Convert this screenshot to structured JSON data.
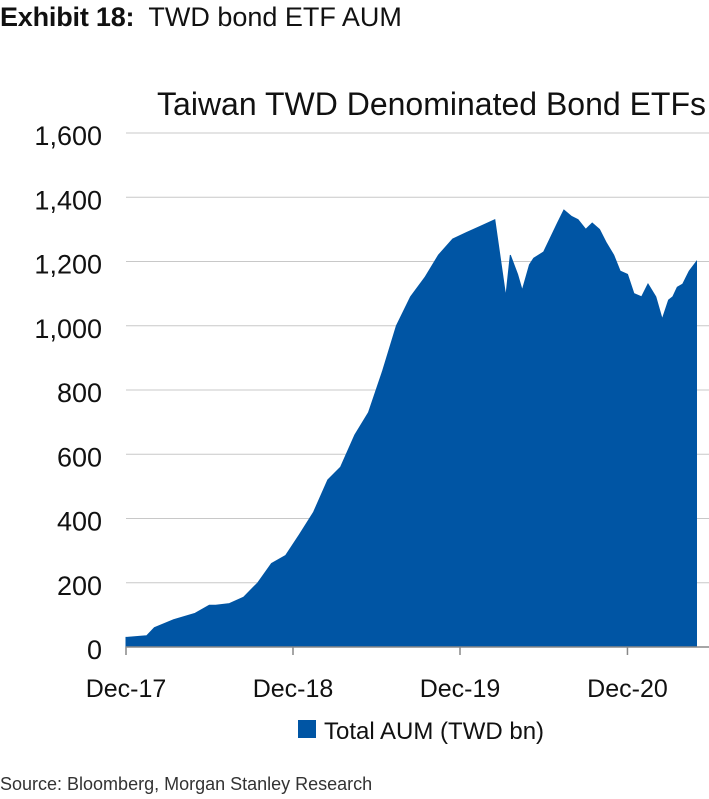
{
  "exhibit": {
    "label": "Exhibit 18:",
    "title": "TWD bond ETF AUM"
  },
  "source": "Source: Bloomberg, Morgan Stanley Research",
  "colors": {
    "area": "#0055A4",
    "axis": "#888888",
    "grid": "#c8c8c8",
    "text": "#111111"
  },
  "chart_data": {
    "type": "area",
    "title": "Taiwan TWD Denominated Bond ETFs",
    "xlabel": "",
    "ylabel": "",
    "ylim": [
      0,
      1600
    ],
    "yticks": [
      0,
      200,
      400,
      600,
      800,
      1000,
      1200,
      1400,
      1600
    ],
    "ytick_labels": [
      "0",
      "200",
      "400",
      "600",
      "800",
      "1,000",
      "1,200",
      "1,400",
      "1,600"
    ],
    "xlim": [
      "2017-12",
      "2021-05"
    ],
    "xticks": [
      "2017-12",
      "2018-12",
      "2019-12",
      "2020-12"
    ],
    "xtick_labels": [
      "Dec-17",
      "Dec-18",
      "Dec-19",
      "Dec-20"
    ],
    "grid": true,
    "legend_position": "bottom",
    "series": [
      {
        "name": "Total AUM (TWD bn)",
        "x": [
          "2017-12-01",
          "2018-01-15",
          "2018-02-01",
          "2018-03-15",
          "2018-05-01",
          "2018-06-01",
          "2018-06-15",
          "2018-07-15",
          "2018-08-15",
          "2018-09-15",
          "2018-10-15",
          "2018-11-15",
          "2018-12-15",
          "2019-01-15",
          "2019-02-15",
          "2019-03-15",
          "2019-04-15",
          "2019-05-15",
          "2019-06-15",
          "2019-07-15",
          "2019-08-15",
          "2019-09-15",
          "2019-10-15",
          "2019-11-15",
          "2019-12-15",
          "2020-01-15",
          "2020-02-15",
          "2020-03-10",
          "2020-03-20",
          "2020-04-05",
          "2020-04-15",
          "2020-05-01",
          "2020-05-10",
          "2020-06-01",
          "2020-07-01",
          "2020-07-15",
          "2020-08-01",
          "2020-08-15",
          "2020-09-01",
          "2020-09-15",
          "2020-10-01",
          "2020-10-15",
          "2020-11-01",
          "2020-11-15",
          "2020-12-01",
          "2020-12-15",
          "2021-01-01",
          "2021-01-15",
          "2021-02-01",
          "2021-02-15",
          "2021-03-01",
          "2021-03-10",
          "2021-03-20",
          "2021-04-01",
          "2021-04-15",
          "2021-05-01"
        ],
        "values": [
          30,
          35,
          60,
          85,
          105,
          130,
          130,
          135,
          155,
          200,
          260,
          285,
          350,
          420,
          520,
          560,
          660,
          730,
          860,
          1000,
          1090,
          1150,
          1220,
          1270,
          1290,
          1310,
          1330,
          1090,
          1220,
          1160,
          1110,
          1190,
          1210,
          1230,
          1320,
          1360,
          1340,
          1330,
          1300,
          1320,
          1300,
          1260,
          1220,
          1170,
          1160,
          1100,
          1090,
          1130,
          1090,
          1020,
          1080,
          1090,
          1120,
          1130,
          1170,
          1200
        ]
      }
    ]
  }
}
